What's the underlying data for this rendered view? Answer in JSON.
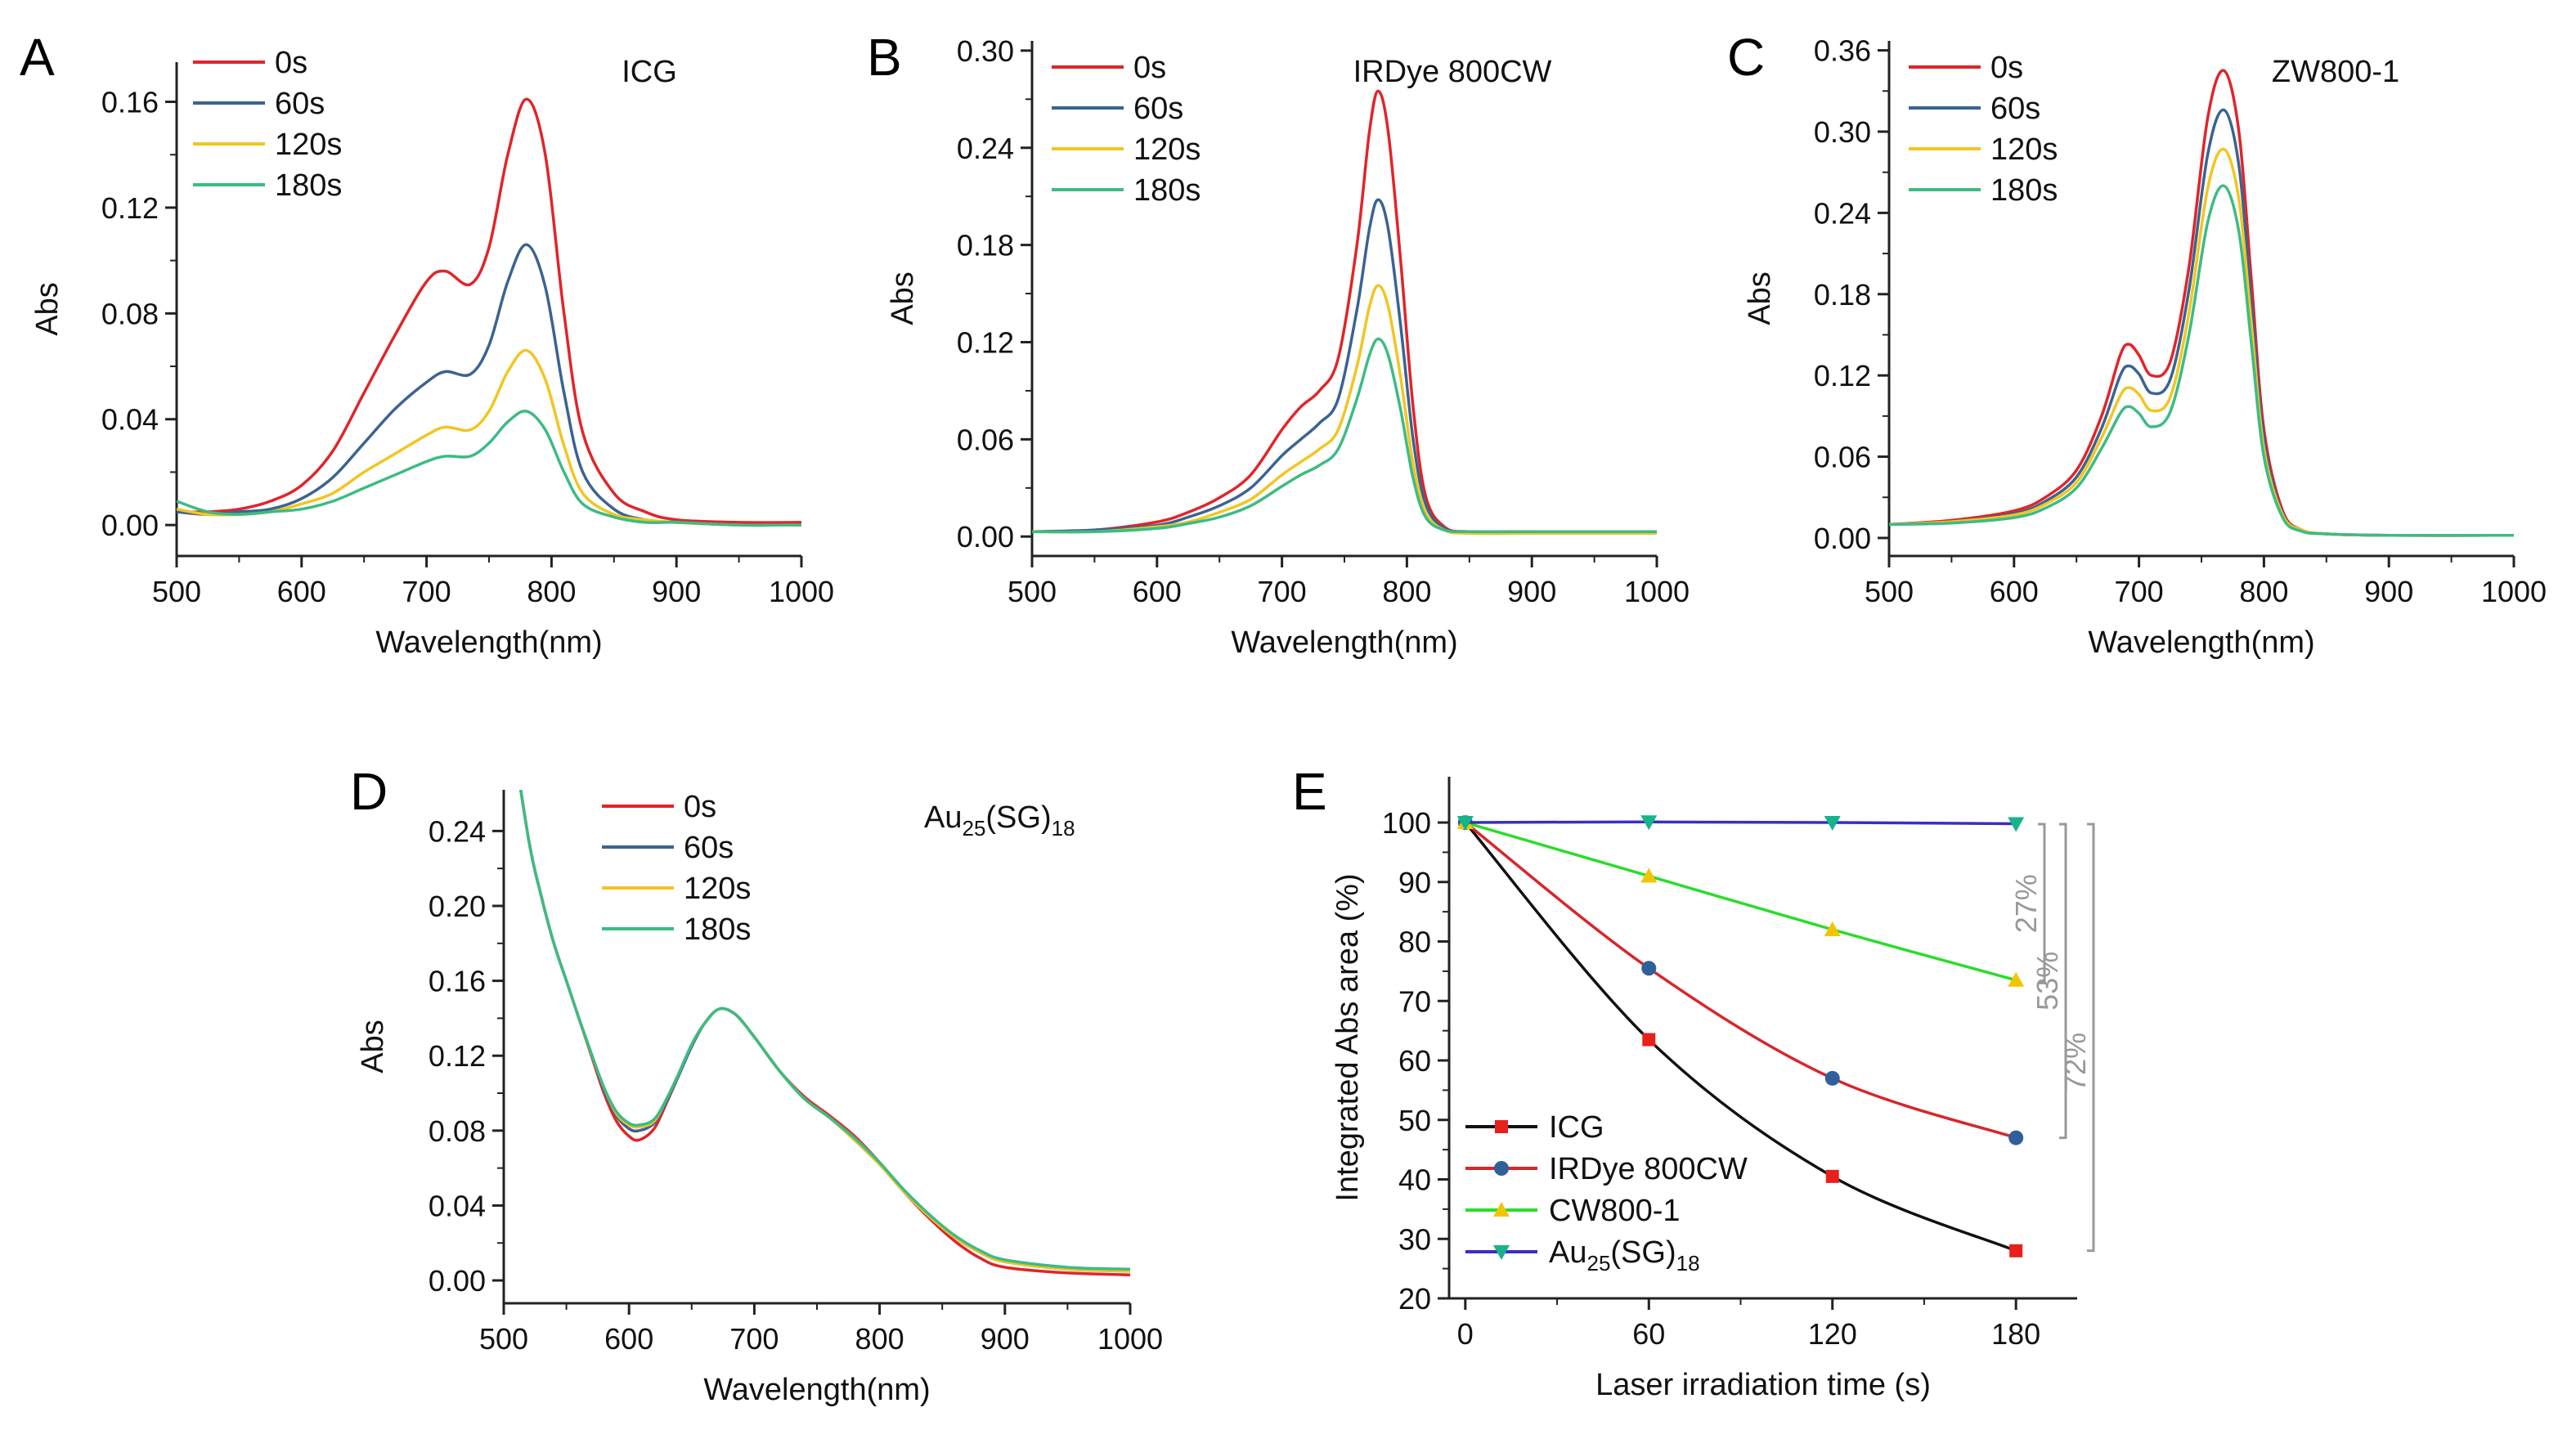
{
  "colors": {
    "0s": "#e0252a",
    "60s": "#3b6391",
    "120s": "#f2c522",
    "180s": "#3dbb84"
  },
  "chart_data": [
    {
      "panel": "A",
      "type": "line",
      "title": "ICG",
      "xlabel": "Wavelength(nm)",
      "ylabel": "Abs",
      "xlim": [
        500,
        1000
      ],
      "ylim": [
        -0.0117,
        0.175
      ],
      "xticks": [
        "500",
        "600",
        "700",
        "800",
        "900",
        "1000"
      ],
      "yticks": [
        "0.00",
        "0.04",
        "0.08",
        "0.12",
        "0.16"
      ],
      "x": [
        500,
        525,
        550,
        575,
        600,
        625,
        650,
        675,
        700,
        715,
        735,
        750,
        765,
        780,
        795,
        810,
        825,
        850,
        875,
        900,
        950,
        1000
      ],
      "series": [
        {
          "name": "0s",
          "values": [
            0.005,
            0.005,
            0.006,
            0.009,
            0.015,
            0.028,
            0.05,
            0.072,
            0.092,
            0.096,
            0.091,
            0.105,
            0.14,
            0.161,
            0.14,
            0.08,
            0.035,
            0.012,
            0.005,
            0.002,
            0.001,
            0.001
          ]
        },
        {
          "name": "60s",
          "values": [
            0.005,
            0.004,
            0.005,
            0.006,
            0.01,
            0.018,
            0.031,
            0.044,
            0.054,
            0.058,
            0.057,
            0.068,
            0.092,
            0.106,
            0.09,
            0.05,
            0.02,
            0.006,
            0.002,
            0.001,
            0.0,
            0.0
          ]
        },
        {
          "name": "120s",
          "values": [
            0.006,
            0.004,
            0.004,
            0.005,
            0.008,
            0.012,
            0.02,
            0.027,
            0.034,
            0.037,
            0.036,
            0.043,
            0.058,
            0.066,
            0.055,
            0.03,
            0.012,
            0.004,
            0.002,
            0.001,
            0.0,
            0.0
          ]
        },
        {
          "name": "180s",
          "values": [
            0.009,
            0.005,
            0.004,
            0.005,
            0.006,
            0.009,
            0.014,
            0.019,
            0.024,
            0.026,
            0.026,
            0.031,
            0.039,
            0.043,
            0.036,
            0.02,
            0.008,
            0.003,
            0.001,
            0.001,
            0.0,
            0.0
          ]
        }
      ]
    },
    {
      "panel": "B",
      "type": "line",
      "title": "IRDye 800CW",
      "xlabel": "Wavelength(nm)",
      "ylabel": "Abs",
      "xlim": [
        500,
        1000
      ],
      "ylim": [
        -0.012,
        0.306
      ],
      "xticks": [
        "500",
        "600",
        "700",
        "800",
        "900",
        "1000"
      ],
      "yticks": [
        "0.00",
        "0.06",
        "0.12",
        "0.18",
        "0.24",
        "0.30"
      ],
      "x": [
        500,
        550,
        600,
        625,
        650,
        675,
        700,
        715,
        730,
        745,
        760,
        770,
        777,
        785,
        795,
        805,
        815,
        830,
        850,
        900,
        1000
      ],
      "series": [
        {
          "name": "0s",
          "values": [
            0.003,
            0.004,
            0.009,
            0.015,
            0.024,
            0.038,
            0.066,
            0.08,
            0.09,
            0.11,
            0.18,
            0.25,
            0.275,
            0.25,
            0.17,
            0.08,
            0.025,
            0.006,
            0.003,
            0.003,
            0.003
          ]
        },
        {
          "name": "60s",
          "values": [
            0.003,
            0.004,
            0.007,
            0.012,
            0.019,
            0.03,
            0.05,
            0.06,
            0.07,
            0.085,
            0.14,
            0.19,
            0.208,
            0.19,
            0.13,
            0.06,
            0.02,
            0.005,
            0.003,
            0.003,
            0.003
          ]
        },
        {
          "name": "120s",
          "values": [
            0.003,
            0.003,
            0.006,
            0.009,
            0.015,
            0.023,
            0.038,
            0.046,
            0.054,
            0.066,
            0.105,
            0.142,
            0.155,
            0.142,
            0.098,
            0.045,
            0.015,
            0.004,
            0.002,
            0.002,
            0.002
          ]
        },
        {
          "name": "180s",
          "values": [
            0.003,
            0.003,
            0.005,
            0.008,
            0.012,
            0.019,
            0.031,
            0.038,
            0.044,
            0.054,
            0.085,
            0.112,
            0.122,
            0.112,
            0.078,
            0.036,
            0.012,
            0.004,
            0.003,
            0.003,
            0.003
          ]
        }
      ]
    },
    {
      "panel": "C",
      "type": "line",
      "title": "ZW800-1",
      "xlabel": "Wavelength(nm)",
      "ylabel": "Abs",
      "xlim": [
        500,
        1000
      ],
      "ylim": [
        -0.0133,
        0.367
      ],
      "xticks": [
        "500",
        "600",
        "700",
        "800",
        "900",
        "1000"
      ],
      "yticks": [
        "0.00",
        "0.06",
        "0.12",
        "0.18",
        "0.24",
        "0.30",
        "0.36"
      ],
      "x": [
        500,
        550,
        600,
        625,
        650,
        670,
        685,
        692,
        700,
        710,
        725,
        740,
        755,
        768,
        780,
        790,
        800,
        815,
        830,
        850,
        900,
        1000
      ],
      "series": [
        {
          "name": "0s",
          "values": [
            0.01,
            0.013,
            0.02,
            0.03,
            0.05,
            0.09,
            0.135,
            0.143,
            0.135,
            0.12,
            0.13,
            0.2,
            0.31,
            0.345,
            0.3,
            0.19,
            0.08,
            0.02,
            0.006,
            0.003,
            0.002,
            0.002
          ]
        },
        {
          "name": "60s",
          "values": [
            0.01,
            0.012,
            0.018,
            0.027,
            0.045,
            0.081,
            0.12,
            0.127,
            0.121,
            0.107,
            0.117,
            0.183,
            0.283,
            0.316,
            0.275,
            0.174,
            0.073,
            0.018,
            0.006,
            0.003,
            0.002,
            0.002
          ]
        },
        {
          "name": "120s",
          "values": [
            0.01,
            0.012,
            0.017,
            0.025,
            0.041,
            0.074,
            0.105,
            0.111,
            0.106,
            0.094,
            0.104,
            0.166,
            0.258,
            0.287,
            0.25,
            0.158,
            0.066,
            0.017,
            0.006,
            0.003,
            0.002,
            0.002
          ]
        },
        {
          "name": "180s",
          "values": [
            0.01,
            0.011,
            0.015,
            0.022,
            0.037,
            0.066,
            0.092,
            0.097,
            0.092,
            0.082,
            0.093,
            0.15,
            0.233,
            0.26,
            0.226,
            0.143,
            0.06,
            0.015,
            0.005,
            0.003,
            0.002,
            0.002
          ]
        }
      ]
    },
    {
      "panel": "D",
      "type": "line",
      "title_parts": [
        "Au",
        "25",
        "(SG)",
        "18"
      ],
      "xlabel": "Wavelength(nm)",
      "ylabel": "Abs",
      "xlim": [
        500,
        1000
      ],
      "ylim": [
        -0.0122,
        0.262
      ],
      "xticks": [
        "500",
        "600",
        "700",
        "800",
        "900",
        "1000"
      ],
      "yticks": [
        "0.00",
        "0.04",
        "0.08",
        "0.12",
        "0.16",
        "0.20",
        "0.24"
      ],
      "x": [
        505,
        520,
        530,
        540,
        550,
        560,
        570,
        580,
        590,
        600,
        608,
        620,
        630,
        640,
        650,
        660,
        672,
        685,
        700,
        720,
        740,
        760,
        780,
        800,
        820,
        840,
        860,
        880,
        900,
        950,
        1000
      ],
      "series": [
        {
          "name": "0s",
          "values": [
            0.3,
            0.235,
            0.205,
            0.18,
            0.16,
            0.14,
            0.12,
            0.1,
            0.085,
            0.077,
            0.075,
            0.081,
            0.095,
            0.11,
            0.125,
            0.137,
            0.145,
            0.142,
            0.13,
            0.112,
            0.098,
            0.088,
            0.077,
            0.063,
            0.047,
            0.033,
            0.021,
            0.012,
            0.007,
            0.004,
            0.003
          ]
        },
        {
          "name": "60s",
          "values": [
            0.3,
            0.235,
            0.205,
            0.18,
            0.16,
            0.14,
            0.121,
            0.102,
            0.088,
            0.081,
            0.08,
            0.084,
            0.096,
            0.11,
            0.125,
            0.137,
            0.145,
            0.142,
            0.13,
            0.112,
            0.097,
            0.087,
            0.075,
            0.062,
            0.047,
            0.034,
            0.023,
            0.015,
            0.01,
            0.006,
            0.005
          ]
        },
        {
          "name": "120s",
          "values": [
            0.3,
            0.235,
            0.205,
            0.18,
            0.16,
            0.14,
            0.121,
            0.103,
            0.089,
            0.083,
            0.082,
            0.085,
            0.097,
            0.111,
            0.126,
            0.137,
            0.145,
            0.142,
            0.13,
            0.112,
            0.097,
            0.087,
            0.075,
            0.062,
            0.047,
            0.034,
            0.023,
            0.015,
            0.01,
            0.006,
            0.005
          ]
        },
        {
          "name": "180s",
          "values": [
            0.3,
            0.235,
            0.205,
            0.18,
            0.16,
            0.14,
            0.121,
            0.103,
            0.09,
            0.084,
            0.083,
            0.086,
            0.097,
            0.111,
            0.126,
            0.137,
            0.145,
            0.142,
            0.13,
            0.112,
            0.097,
            0.087,
            0.076,
            0.063,
            0.048,
            0.035,
            0.024,
            0.016,
            0.011,
            0.007,
            0.006
          ]
        }
      ]
    },
    {
      "panel": "E",
      "type": "line",
      "xlabel": "Laser irradiation time (s)",
      "ylabel": "Integrated Abs area (%)",
      "xlim": [
        -5.3,
        200
      ],
      "ylim": [
        20,
        107.7
      ],
      "xticks": [
        "0",
        "60",
        "120",
        "180"
      ],
      "yticks": [
        "20",
        "30",
        "40",
        "50",
        "60",
        "70",
        "80",
        "90",
        "100"
      ],
      "x": [
        0,
        60,
        120,
        180
      ],
      "series": [
        {
          "name": "ICG",
          "values": [
            100,
            63.5,
            40.5,
            28
          ],
          "line_color": "#111111",
          "marker": "square",
          "marker_color": "#e8201c"
        },
        {
          "name": "IRDye 800CW",
          "values": [
            100,
            75.5,
            57,
            47
          ],
          "line_color": "#d7262b",
          "marker": "circle",
          "marker_color": "#2f5f9c"
        },
        {
          "name": "CW800-1",
          "values": [
            100,
            91,
            82,
            73.5
          ],
          "line_color": "#2bdc2b",
          "marker": "triangle-up",
          "marker_color": "#f5c400"
        },
        {
          "name_parts": [
            "Au",
            "25",
            "(SG)",
            "18"
          ],
          "values": [
            100,
            100.1,
            100,
            99.8
          ],
          "line_color": "#3a2fc0",
          "marker": "triangle-down",
          "marker_color": "#17b38a"
        }
      ],
      "annotations": [
        {
          "text": "27%",
          "from": 100,
          "to": 73
        },
        {
          "text": "53%",
          "from": 100,
          "to": 47
        },
        {
          "text": "72%",
          "from": 100,
          "to": 28
        }
      ]
    }
  ]
}
